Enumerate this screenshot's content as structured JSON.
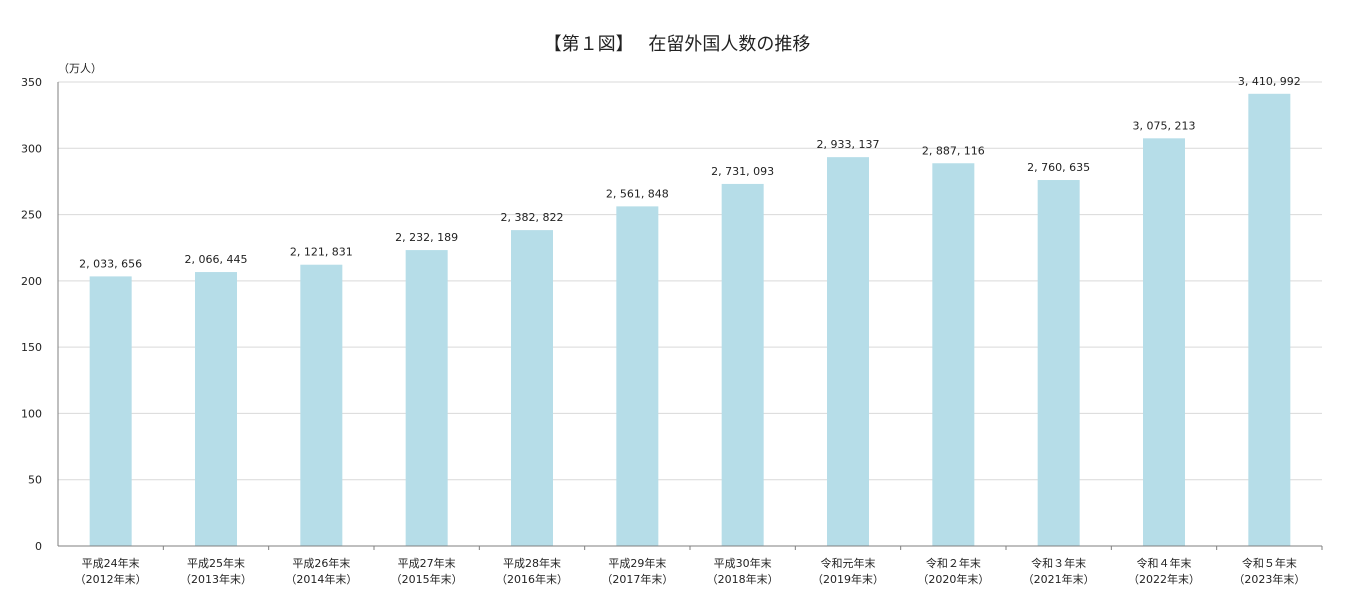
{
  "chart_data": {
    "type": "bar",
    "title": "【第１図】　 在留外国人数の推移",
    "ylabel": "（万人）",
    "xlabel": "",
    "ylim": [
      0,
      350
    ],
    "yticks": [
      0,
      50,
      100,
      150,
      200,
      250,
      300,
      350
    ],
    "grid": true,
    "bar_color": "#b6dde8",
    "categories": [
      [
        "平成24年末",
        "（2012年末）"
      ],
      [
        "平成25年末",
        "（2013年末）"
      ],
      [
        "平成26年末",
        "（2014年末）"
      ],
      [
        "平成27年末",
        "（2015年末）"
      ],
      [
        "平成28年末",
        "（2016年末）"
      ],
      [
        "平成29年末",
        "（2017年末）"
      ],
      [
        "平成30年末",
        "（2018年末）"
      ],
      [
        "令和元年末",
        "（2019年末）"
      ],
      [
        "令和２年末",
        "（2020年末）"
      ],
      [
        "令和３年末",
        "（2021年末）"
      ],
      [
        "令和４年末",
        "（2022年末）"
      ],
      [
        "令和５年末",
        "（2023年末）"
      ]
    ],
    "values": [
      2033656,
      2066445,
      2121831,
      2232189,
      2382822,
      2561848,
      2731093,
      2933137,
      2887116,
      2760635,
      3075213,
      3410992
    ],
    "data_labels": [
      "2, 033, 656",
      "2, 066, 445",
      "2, 121, 831",
      "2, 232, 189",
      "2, 382, 822",
      "2, 561, 848",
      "2, 731, 093",
      "2, 933, 137",
      "2, 887, 116",
      "2, 760, 635",
      "3, 075, 213",
      "3, 410, 992"
    ]
  }
}
